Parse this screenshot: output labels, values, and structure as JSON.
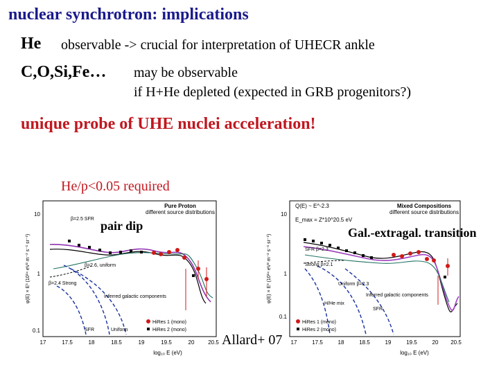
{
  "slide": {
    "title": "nuclear synchrotron: implications",
    "he_label": "He",
    "he_text": "observable -> crucial for interpretation of UHECR ankle",
    "nuclei_label": "C,O,Si,Fe…",
    "nuclei_text_1": "may be observable",
    "nuclei_text_2": "if H+He depleted (expected in GRB progenitors?)",
    "unique_probe": "unique probe of UHE nuclei acceleration!",
    "he_p_required": "He/p<0.05 required",
    "pair_dip": "pair dip",
    "gal_transition": "Gal.-extragal. transition",
    "citation": "Allard+ 07"
  },
  "colors": {
    "title": "#1a1a8c",
    "highlight": "#c01820",
    "data_points": "#d01818",
    "proton_curve": "#9030b0",
    "mixed_curve": "#a040c0",
    "uniform_dash": "#1830a0"
  },
  "left_plot": {
    "title_1": "Pure Proton",
    "title_2": "different source distributions",
    "y_tick_top": "10",
    "y_tick_mid": "1",
    "y_tick_bottom": "0.1",
    "y_axis_label": "φ(E) × E³ (10²⁴ eV² m⁻² s⁻¹ sr⁻¹)",
    "x_ticks": [
      "17",
      "17.5",
      "18",
      "18.5",
      "19",
      "19.5",
      "20",
      "20.5"
    ],
    "x_axis_label": "log₁₀ E (eV)",
    "curve_labels": {
      "sfr_top": "β=2.5 SFR",
      "uniform": "β=2.6, uniform",
      "strong": "β=2.4 Strong",
      "galactic": "Inferred galactic components",
      "sfr_bottom": "SFR",
      "uniform_bottom": "Uniform"
    },
    "legend": [
      "HiRes 1 (mono)",
      "HiRes 2 (mono)"
    ]
  },
  "right_plot": {
    "title_1": "Mixed Compositions",
    "title_2": "different source distributions",
    "formula_1": "Q(E) ~ E^-2.3",
    "formula_2": "E_max = Z*10^20.5 eV",
    "y_tick_top": "10",
    "y_tick_mid": "1",
    "y_tick_bottom": "0.1",
    "y_axis_label": "φ(E) × E³ (10²⁴ eV² m⁻² s⁻¹ sr⁻¹)",
    "x_ticks": [
      "17",
      "17.5",
      "18",
      "18.5",
      "19",
      "19.5",
      "20",
      "20.5"
    ],
    "x_axis_label": "log₁₀ E (eV)",
    "curve_labels": {
      "sfr": "SFR β=2.3",
      "strong": "Strong β=2.1",
      "uniform": "Uniform β=2.3",
      "hhe": "H/He mix",
      "galactic": "Inferred galactic components",
      "sfr_bottom": "SFR"
    },
    "legend": [
      "HiRes 1 (mono)",
      "HiRes 2 (mono)"
    ]
  }
}
